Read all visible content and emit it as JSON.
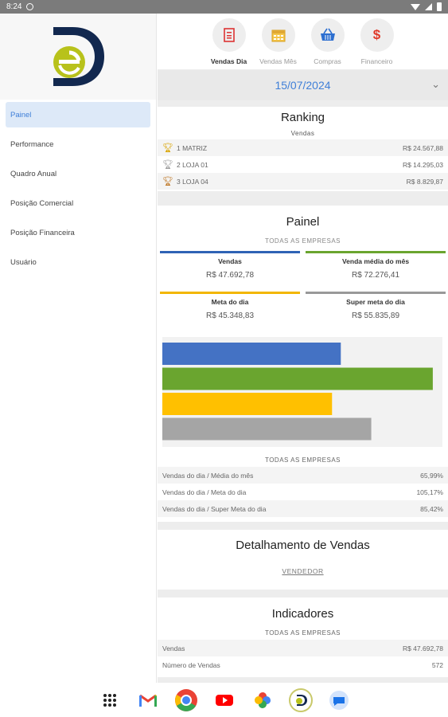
{
  "status": {
    "time": "8:24"
  },
  "sidebar": {
    "items": [
      {
        "label": "Painel",
        "active": true
      },
      {
        "label": "Performance",
        "active": false
      },
      {
        "label": "Quadro Anual",
        "active": false
      },
      {
        "label": "Posição Comercial",
        "active": false
      },
      {
        "label": "Posição Financeira",
        "active": false
      },
      {
        "label": "Usuário",
        "active": false
      }
    ]
  },
  "tabs": [
    {
      "label": "Vendas Dia",
      "icon": "receipt-icon",
      "active": true
    },
    {
      "label": "Vendas Mês",
      "icon": "calendar-icon",
      "active": false
    },
    {
      "label": "Compras",
      "icon": "basket-icon",
      "active": false
    },
    {
      "label": "Financeiro",
      "icon": "dollar-icon",
      "active": false
    }
  ],
  "date": {
    "value": "15/07/2024"
  },
  "ranking": {
    "title": "Ranking",
    "subtitle": "Vendas",
    "rows": [
      {
        "pos": "1",
        "name": "MATRIZ",
        "value": "R$ 24.567,88",
        "color": "#d9a400"
      },
      {
        "pos": "2",
        "name": "LOJA 01",
        "value": "R$ 14.295,03",
        "color": "#9e9e9e"
      },
      {
        "pos": "3",
        "name": "LOJA 04",
        "value": "R$ 8.829,87",
        "color": "#c07a2a"
      }
    ]
  },
  "painel": {
    "title": "Painel",
    "subtitle": "TODAS AS EMPRESAS",
    "kpis": [
      {
        "label": "Vendas",
        "value": "R$ 47.692,78",
        "color": "#2f63b5"
      },
      {
        "label": "Venda média do mês",
        "value": "R$ 72.276,41",
        "color": "#6aa52f"
      },
      {
        "label": "Meta do dia",
        "value": "R$ 45.348,83",
        "color": "#f2b600"
      },
      {
        "label": "Super meta do dia",
        "value": "R$ 55.835,89",
        "color": "#999999"
      }
    ],
    "ratios_subtitle": "TODAS AS EMPRESAS",
    "ratios": [
      {
        "label": "Vendas do dia / Média do mês",
        "value": "65,99%"
      },
      {
        "label": "Vendas do dia / Meta do dia",
        "value": "105,17%"
      },
      {
        "label": "Vendas do dia / Super Meta do dia",
        "value": "85,42%"
      }
    ]
  },
  "chart_data": {
    "type": "bar",
    "orientation": "horizontal",
    "categories": [
      "Vendas",
      "Venda média do mês",
      "Meta do dia",
      "Super meta do dia"
    ],
    "values": [
      47692.78,
      72276.41,
      45348.83,
      55835.89
    ],
    "colors": [
      "#4472c4",
      "#6aa52f",
      "#ffc000",
      "#a5a5a5"
    ],
    "xlim": [
      0,
      74000
    ],
    "title": "",
    "xlabel": "",
    "ylabel": ""
  },
  "detalhamento": {
    "title": "Detalhamento de Vendas",
    "link": "VENDEDOR"
  },
  "indicadores": {
    "title": "Indicadores",
    "subtitle": "TODAS AS EMPRESAS",
    "rows": [
      {
        "label": "Vendas",
        "value": "R$ 47.692,78"
      },
      {
        "label": "Número de Vendas",
        "value": "572"
      }
    ]
  },
  "dock": [
    "apps-grid-icon",
    "gmail-icon",
    "chrome-icon",
    "youtube-icon",
    "photos-icon",
    "app-logo-icon",
    "messages-icon"
  ]
}
